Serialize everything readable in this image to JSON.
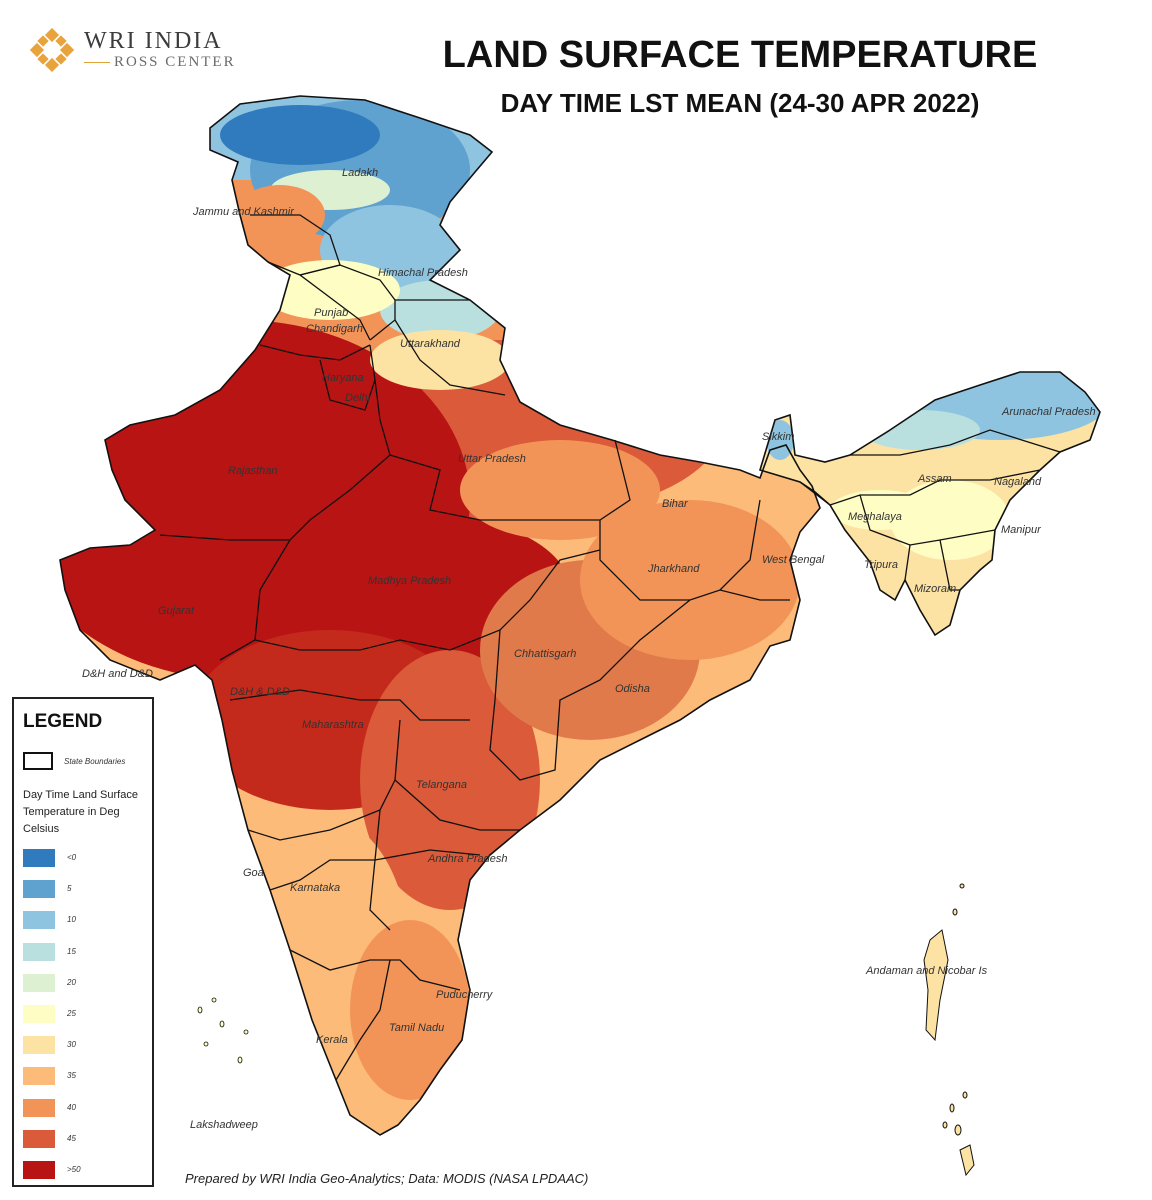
{
  "logo": {
    "name": "WRI INDIA",
    "sub": "ROSS CENTER"
  },
  "title": "LAND SURFACE TEMPERATURE",
  "subtitle": "DAY TIME LST MEAN (24-30 APR 2022)",
  "colors": {
    "lt0": "#2f7bbd",
    "c5": "#5fa2cf",
    "c10": "#8fc4e0",
    "c15": "#b9e0de",
    "c20": "#ddf1d2",
    "c25": "#fefdc4",
    "c30": "#fde3a3",
    "c35": "#fcbb78",
    "c40": "#f29457",
    "c45": "#da5a39",
    "c50": "#b81414"
  },
  "map_labels": {
    "ladakh": "Ladakh",
    "jammu_kashmir": "Jammu and Kashmir",
    "himachal": "Himachal Pradesh",
    "punjab": "Punjab",
    "chandigarh": "Chandigarh",
    "uttarakhand": "Uttarakhand",
    "haryana": "Haryana",
    "delhi": "Delhi",
    "rajasthan": "Rajasthan",
    "uttar_pradesh": "Uttar Pradesh",
    "bihar": "Bihar",
    "sikkim": "Sikkim",
    "arunachal": "Arunachal Pradesh",
    "assam": "Assam",
    "nagaland": "Nagaland",
    "meghalaya": "Meghalaya",
    "manipur": "Manipur",
    "tripura": "Tripura",
    "mizoram": "Mizoram",
    "west_bengal": "West Bengal",
    "jharkhand": "Jharkhand",
    "madhya_pradesh": "Madhya Pradesh",
    "gujarat": "Gujarat",
    "dh_dd_1": "D&H and D&D",
    "dh_dd_2": "D&H & D&D",
    "chhattisgarh": "Chhattisgarh",
    "odisha": "Odisha",
    "maharashtra": "Maharashtra",
    "telangana": "Telangana",
    "andhra": "Andhra Pradesh",
    "goa": "Goa",
    "karnataka": "Karnataka",
    "puducherry": "Puducherry",
    "tamil_nadu": "Tamil Nadu",
    "kerala": "Kerala",
    "lakshadweep": "Lakshadweep",
    "andaman": "Andaman and Nicobar Is"
  },
  "legend": {
    "title": "LEGEND",
    "boundary_label": "State Boundaries",
    "heading": "Day Time Land Surface Temperature in Deg Celsius",
    "items": [
      {
        "label": "<0",
        "color": "#2f7bbd"
      },
      {
        "label": "5",
        "color": "#5fa2cf"
      },
      {
        "label": "10",
        "color": "#8fc4e0"
      },
      {
        "label": "15",
        "color": "#b9e0de"
      },
      {
        "label": "20",
        "color": "#ddf1d2"
      },
      {
        "label": "25",
        "color": "#fefdc4"
      },
      {
        "label": "30",
        "color": "#fde3a3"
      },
      {
        "label": "35",
        "color": "#fcbb78"
      },
      {
        "label": "40",
        "color": "#f29457"
      },
      {
        "label": "45",
        "color": "#da5a39"
      },
      {
        "label": ">50",
        "color": "#b81414"
      }
    ]
  },
  "credit": "Prepared by WRI India Geo-Analytics; Data: MODIS (NASA LPDAAC)"
}
